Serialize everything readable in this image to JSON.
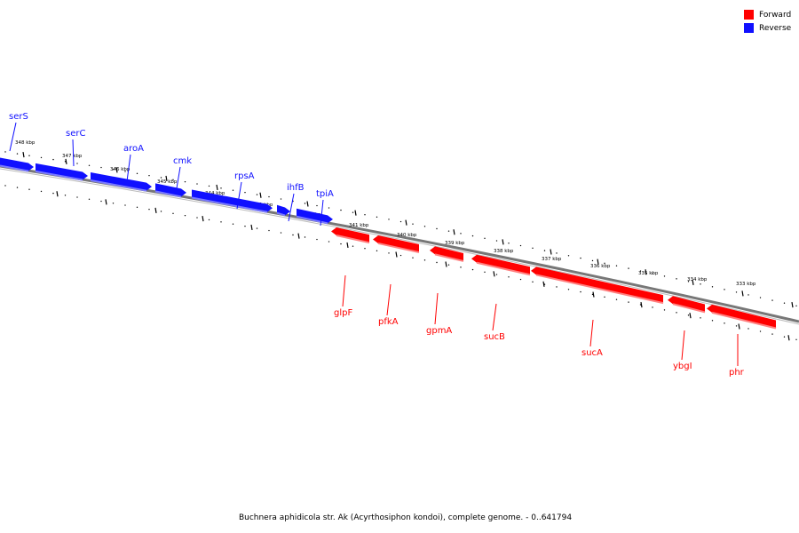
{
  "legend": {
    "forward": {
      "label": "Forward",
      "color": "#ff0000"
    },
    "reverse": {
      "label": "Reverse",
      "color": "#1010ff"
    }
  },
  "caption": "Buchnera aphidicola str. Ak (Acyrthosiphon kondoi), complete genome. - 0..641794",
  "reverse_genes": [
    "serS",
    "serC",
    "aroA",
    "cmk",
    "rpsA",
    "ihfB",
    "tpiA"
  ],
  "forward_genes": [
    "glpF",
    "pfkA",
    "gpmA",
    "sucB",
    "sucA",
    "ybgI",
    "phr"
  ],
  "ticks_reverse": [
    "348 kbp",
    "347 kbp",
    "346 kbp",
    "345 kbp",
    "344 kbp",
    "341 kbp",
    "342 kbp"
  ],
  "ticks_forward": [
    "341 kbp",
    "340 kbp",
    "339 kbp",
    "338 kbp",
    "337 kbp",
    "336 kbp",
    "335 kbp",
    "334 kbp",
    "333 kbp"
  ]
}
